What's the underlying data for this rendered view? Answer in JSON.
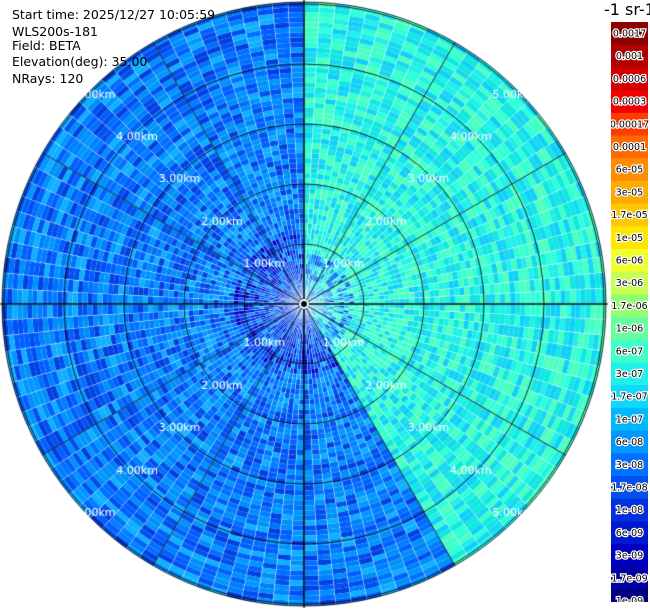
{
  "header": {
    "start_time": "Start time: 2025/12/27 10:05:59",
    "instrument": "WLS200s-181",
    "field": "Field: BETA",
    "elevation": "Elevation(deg): 35.00",
    "nrays": "NRays: 120"
  },
  "colorbar": {
    "title": "-1 sr-1",
    "labels": [
      "0.0017",
      "0.001",
      "0.0006",
      "0.0003",
      "0.00017",
      "0.0001",
      "6e-05",
      "3e-05",
      "1.7e-05",
      "1e-05",
      "6e-06",
      "3e-06",
      "1.7e-06",
      "1e-06",
      "6e-07",
      "3e-07",
      "1.7e-07",
      "1e-07",
      "6e-08",
      "3e-08",
      "1.7e-08",
      "1e-08",
      "6e-09",
      "3e-09",
      "1.7e-09",
      "1e-09"
    ],
    "colors": [
      "#8b0000",
      "#b00000",
      "#d40000",
      "#f20000",
      "#ff3c00",
      "#ff6a00",
      "#ff8c00",
      "#ffaa00",
      "#ffc800",
      "#ffe600",
      "#f0ff2e",
      "#c8ff50",
      "#90ff70",
      "#66ffa0",
      "#40ffc8",
      "#20f0e8",
      "#10d8f8",
      "#00b8ff",
      "#0098ff",
      "#0070ff",
      "#0050f0",
      "#0030e0",
      "#0018d0",
      "#0000c0",
      "#0000a0",
      "#000080"
    ]
  },
  "chart_data": {
    "type": "heatmap",
    "projection": "polar (PPI scan)",
    "field": "BETA",
    "elevation_deg": 35.0,
    "n_rays": 120,
    "range_labels_km": [
      "1.00km",
      "2.00km",
      "3.00km",
      "4.00km",
      "5.00km"
    ],
    "range_rings_km": [
      1,
      2,
      3,
      4,
      5
    ],
    "sectors": [
      {
        "azimuth_deg": [
          0,
          150
        ],
        "dominant_value": "1e-07 to 3e-07",
        "dominant_color": "#20f0e8"
      },
      {
        "azimuth_deg": [
          150,
          360
        ],
        "dominant_value": "1e-08 to 6e-08",
        "dominant_color": "#0070ff"
      }
    ],
    "grid": true
  }
}
